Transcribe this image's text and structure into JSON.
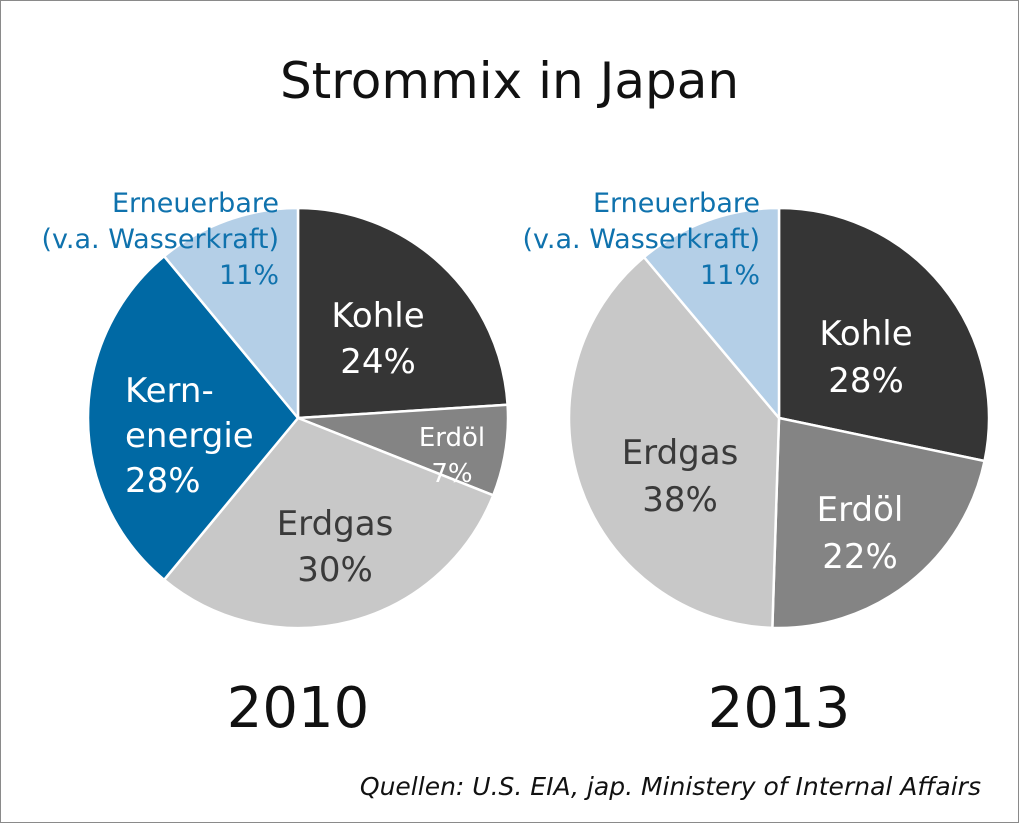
{
  "title": "Strommix in Japan",
  "source": "Quellen: U.S. EIA, jap. Ministery of Internal Affairs",
  "chart_data": [
    {
      "type": "pie",
      "year": "2010",
      "slices": [
        {
          "label": "Kohle",
          "value": 24,
          "display": "24%",
          "color": "#353535",
          "text_color": "#ffffff"
        },
        {
          "label": "Erdöl",
          "value": 7,
          "display": "7%",
          "color": "#848484",
          "text_color": "#ffffff"
        },
        {
          "label": "Erdgas",
          "value": 30,
          "display": "30%",
          "color": "#c8c8c8",
          "text_color": "#3a3a3a"
        },
        {
          "label": "Kern-\nenergie",
          "value": 28,
          "display": "28%",
          "color": "#0069a4",
          "text_color": "#ffffff"
        },
        {
          "label": "Erneuerbare\n(v.a. Wasserkraft)",
          "value": 11,
          "display": "11%",
          "color": "#b4cfe7",
          "text_color": "#0f72ad"
        }
      ]
    },
    {
      "type": "pie",
      "year": "2013",
      "slices": [
        {
          "label": "Kohle",
          "value": 28,
          "display": "28%",
          "color": "#353535",
          "text_color": "#ffffff"
        },
        {
          "label": "Erdöl",
          "value": 22,
          "display": "22%",
          "color": "#848484",
          "text_color": "#ffffff"
        },
        {
          "label": "Erdgas",
          "value": 38,
          "display": "38%",
          "color": "#c8c8c8",
          "text_color": "#3a3a3a"
        },
        {
          "label": "Erneuerbare\n(v.a. Wasserkraft)",
          "value": 11,
          "display": "11%",
          "color": "#b4cfe7",
          "text_color": "#0f72ad"
        }
      ]
    }
  ]
}
